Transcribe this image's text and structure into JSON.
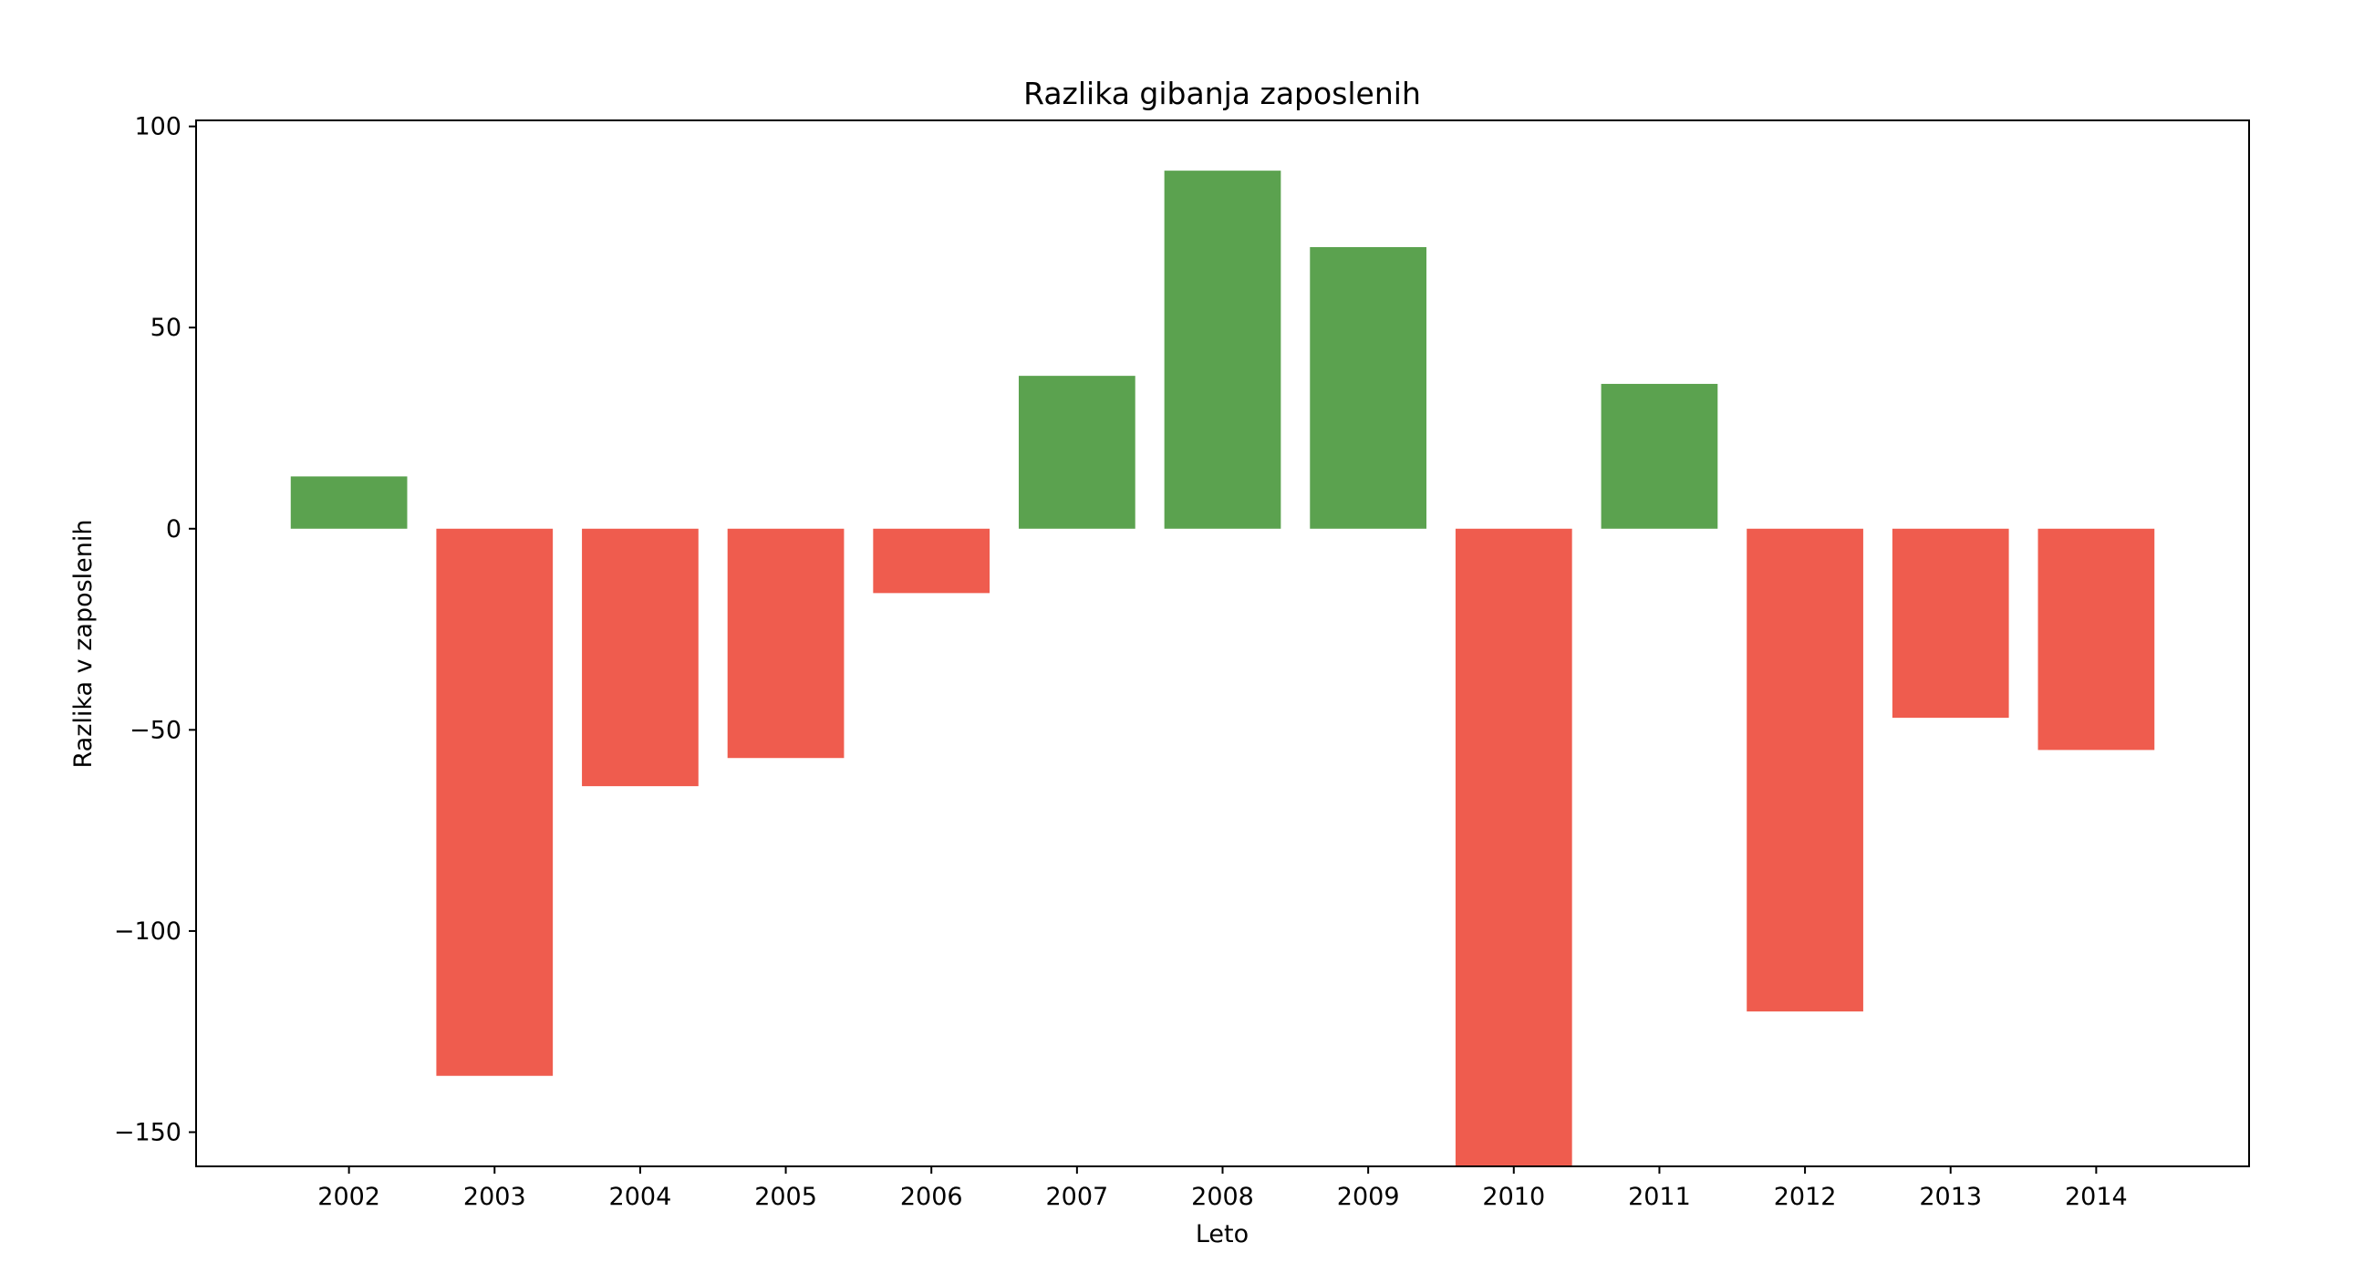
{
  "chart_data": {
    "type": "bar",
    "title": "Razlika gibanja zaposlenih",
    "xlabel": "Leto",
    "ylabel": "Razlika v zaposlenih",
    "categories": [
      "2002",
      "2003",
      "2004",
      "2005",
      "2006",
      "2007",
      "2008",
      "2009",
      "2010",
      "2011",
      "2012",
      "2013",
      "2014"
    ],
    "values": [
      13,
      -136,
      -64,
      -57,
      -16,
      38,
      89,
      70,
      -160,
      36,
      -120,
      -47,
      -55
    ],
    "ylim": [
      -158.5,
      101.5
    ],
    "yticks": [
      -150,
      -100,
      -50,
      0,
      50,
      100
    ],
    "ytick_labels": [
      "−150",
      "−100",
      "−50",
      "0",
      "50",
      "100"
    ],
    "grid": false,
    "colors": {
      "positive": "#5ba24f",
      "negative": "#ef5c4e"
    }
  }
}
